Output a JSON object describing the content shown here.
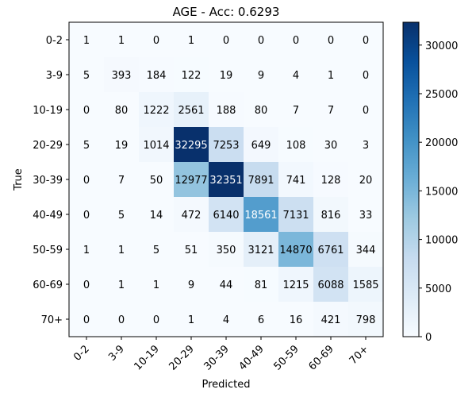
{
  "chart_data": {
    "type": "heatmap",
    "title": "AGE - Acc: 0.6293",
    "xlabel": "Predicted",
    "ylabel": "True",
    "x_categories": [
      "0-2",
      "3-9",
      "10-19",
      "20-29",
      "30-39",
      "40-49",
      "50-59",
      "60-69",
      "70+"
    ],
    "y_categories": [
      "0-2",
      "3-9",
      "10-19",
      "20-29",
      "30-39",
      "40-49",
      "50-59",
      "60-69",
      "70+"
    ],
    "values": [
      [
        1,
        1,
        0,
        1,
        0,
        0,
        0,
        0,
        0
      ],
      [
        5,
        393,
        184,
        122,
        19,
        9,
        4,
        1,
        0
      ],
      [
        0,
        80,
        1222,
        2561,
        188,
        80,
        7,
        7,
        0
      ],
      [
        5,
        19,
        1014,
        32295,
        7253,
        649,
        108,
        30,
        3
      ],
      [
        0,
        7,
        50,
        12977,
        32351,
        7891,
        741,
        128,
        20
      ],
      [
        0,
        5,
        14,
        472,
        6140,
        18561,
        7131,
        816,
        33
      ],
      [
        1,
        1,
        5,
        51,
        350,
        3121,
        14870,
        6761,
        344
      ],
      [
        0,
        1,
        1,
        9,
        44,
        81,
        1215,
        6088,
        1585
      ],
      [
        0,
        0,
        0,
        1,
        4,
        6,
        16,
        421,
        798
      ]
    ],
    "colormap": "Blues",
    "colorbar": {
      "range": [
        0,
        32351
      ],
      "ticks": [
        0,
        5000,
        10000,
        15000,
        20000,
        25000,
        30000
      ]
    },
    "grid": false
  }
}
